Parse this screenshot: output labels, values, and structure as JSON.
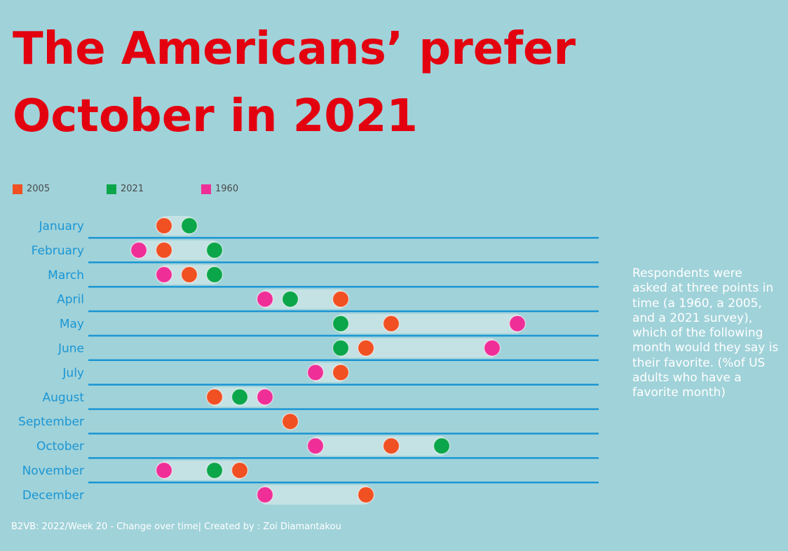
{
  "title": "The Americans’ prefer October in 2021",
  "note": "Respondents were asked at three points in time (a 1960, a 2005, and a 2021 survey), which of the following month would they say is their favorite. (%of US adults who have a favorite month)",
  "footer": "B2VB: 2022/Week 20 - Change over time| Created by : Zoi Diamantakou",
  "colors": {
    "background": "#a0d2d9",
    "title": "#e3000f",
    "divider": "#1a96d4",
    "range_band": "#c4e1e4"
  },
  "legend": [
    {
      "label": "2005",
      "color": "#f05022"
    },
    {
      "label": "2021",
      "color": "#0ba64a"
    },
    {
      "label": "1960",
      "color": "#ef2f97"
    }
  ],
  "chart_data": {
    "type": "dot-range",
    "title": "The Americans’ prefer October in 2021",
    "categories": [
      "January",
      "February",
      "March",
      "April",
      "May",
      "June",
      "July",
      "August",
      "September",
      "October",
      "November",
      "December"
    ],
    "xlim": [
      0,
      22
    ],
    "series": [
      {
        "name": "2005",
        "color": "#f05022",
        "values": [
          3,
          3,
          4,
          10,
          12,
          11,
          10,
          5,
          8,
          12,
          6,
          11
        ]
      },
      {
        "name": "2021",
        "color": "#0ba64a",
        "values": [
          4,
          5,
          5,
          8,
          10,
          10,
          null,
          6,
          null,
          14,
          5,
          null
        ]
      },
      {
        "name": "1960",
        "color": "#ef2f97",
        "values": [
          null,
          2,
          3,
          7,
          17,
          16,
          9,
          7,
          null,
          9,
          3,
          7
        ]
      }
    ]
  }
}
